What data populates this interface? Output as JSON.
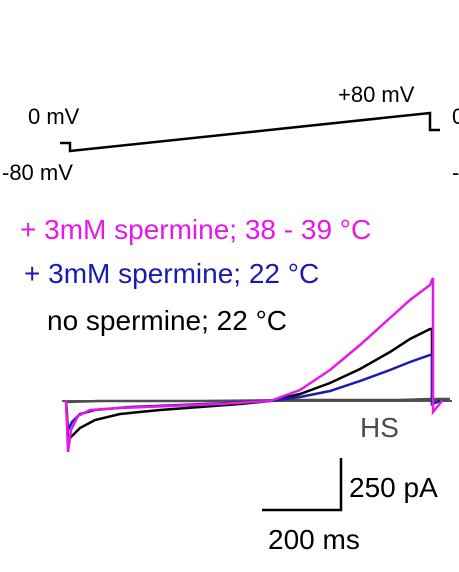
{
  "protocol": {
    "label_0mv_left": "0 mV",
    "label_neg80mv": "-80 mV",
    "label_pos80mv": "+80 mV",
    "label_right_cut_top": "0",
    "label_right_cut_bottom": "-"
  },
  "legend": [
    {
      "text": "+ 3mM spermine; 38 - 39 °C",
      "color": "#e619e6"
    },
    {
      "text": "+ 3mM spermine; 22 °C",
      "color": "#1a1ab3"
    },
    {
      "text": "no spermine; 22 °C",
      "color": "#000000"
    }
  ],
  "traces": {
    "hs_label": "HS",
    "hs_color": "#4d4d4d"
  },
  "scale_bar": {
    "current_label": "250 pA",
    "time_label": "200 ms"
  }
}
